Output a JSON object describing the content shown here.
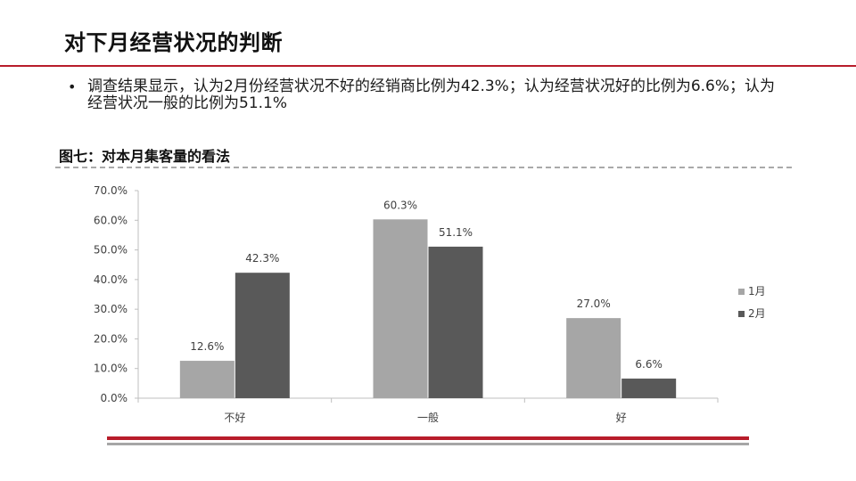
{
  "slide": {
    "title": "对下月经营状况的判断",
    "bullet": "调查结果显示，认为2月份经营状况不好的经销商比例为42.3%；认为经营状况好的比例为6.6%；认为经营状况一般的比例为51.1%",
    "bullet_symbol": "•"
  },
  "colors": {
    "accent_red": "#b81c2a",
    "series_jan": "#a6a6a6",
    "series_feb": "#595959"
  },
  "chart_data": {
    "type": "bar",
    "title": "图七：对本月集客量的看法",
    "categories": [
      "不好",
      "一般",
      "好"
    ],
    "series": [
      {
        "name": "1月",
        "values": [
          12.6,
          60.3,
          27.0
        ],
        "labels": [
          "12.6%",
          "60.3%",
          "27.0%"
        ],
        "color": "#a6a6a6"
      },
      {
        "name": "2月",
        "values": [
          42.3,
          51.1,
          6.6
        ],
        "labels": [
          "42.3%",
          "51.1%",
          "6.6%"
        ],
        "color": "#595959"
      }
    ],
    "yticks": [
      "0.0%",
      "10.0%",
      "20.0%",
      "30.0%",
      "40.0%",
      "50.0%",
      "60.0%",
      "70.0%"
    ],
    "ylim": [
      0,
      70
    ],
    "grid": false,
    "legend": "right"
  }
}
